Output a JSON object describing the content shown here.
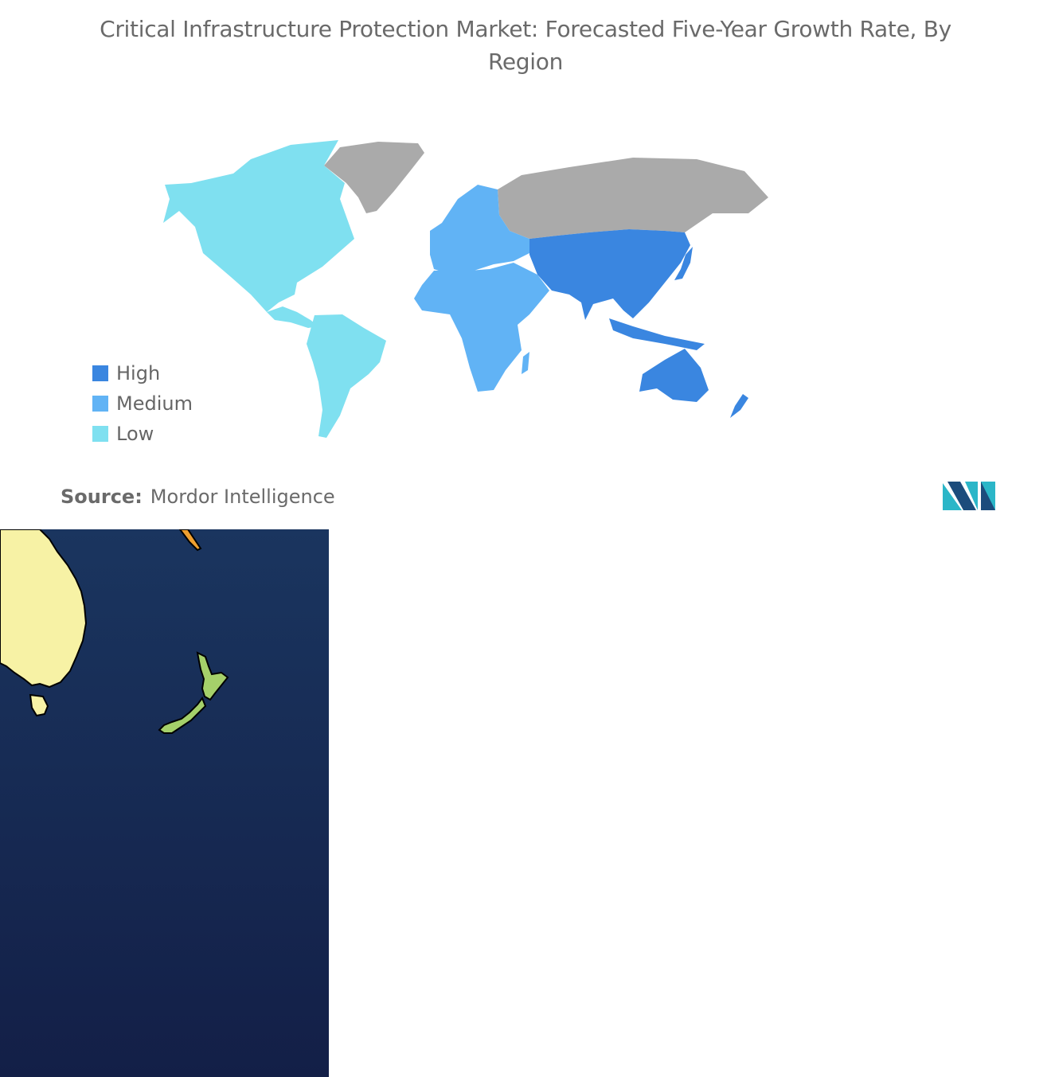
{
  "title": "Critical Infrastructure Protection Market: Forecasted Five-Year Growth Rate, By Region",
  "legend": [
    {
      "label": "High",
      "color": "#3a86e0"
    },
    {
      "label": "Medium",
      "color": "#61b3f5"
    },
    {
      "label": "Low",
      "color": "#7fe0f0"
    }
  ],
  "regions": [
    {
      "name": "North America",
      "level": "Low"
    },
    {
      "name": "South America",
      "level": "Low"
    },
    {
      "name": "Europe",
      "level": "Medium"
    },
    {
      "name": "Middle East and Africa",
      "level": "Medium"
    },
    {
      "name": "Asia Pacific",
      "level": "High"
    },
    {
      "name": "Russia and Greenland",
      "level": "No data"
    }
  ],
  "colors": {
    "no_data": "#aaaaaa",
    "ocean_top": "#1a355f",
    "ocean_bottom": "#131f47",
    "australia_inset": "#f7f2a5",
    "new_zealand_inset": "#a5d06a",
    "inset_accent": "#f0a030",
    "logo_teal": "#2bb6c8",
    "logo_navy": "#1c4c7c"
  },
  "source": {
    "prefix": "Source:",
    "name": "Mordor Intelligence"
  }
}
